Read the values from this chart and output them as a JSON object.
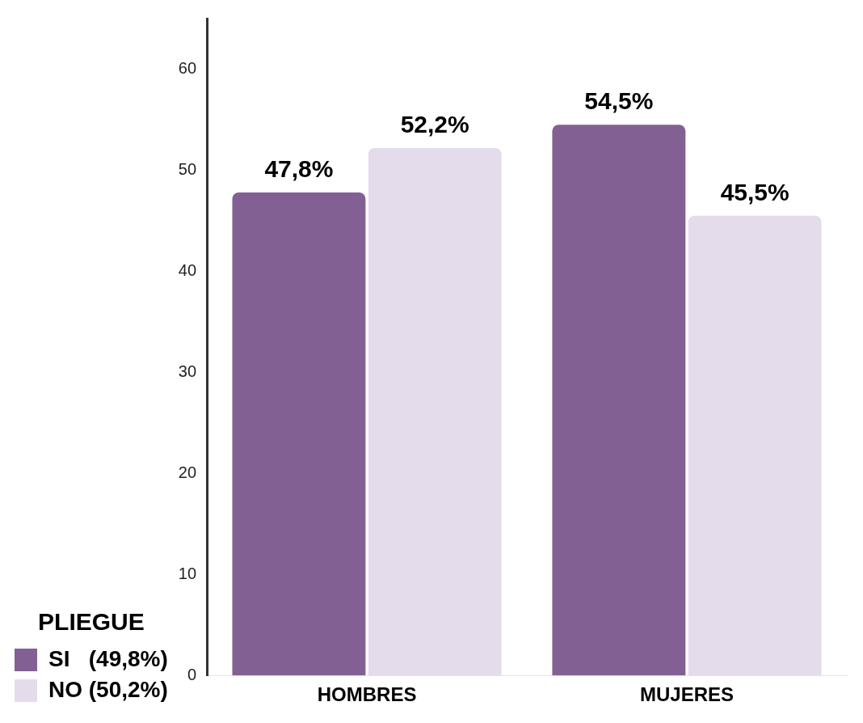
{
  "chart_data": {
    "type": "bar",
    "categories": [
      "HOMBRES",
      "MUJERES"
    ],
    "series": [
      {
        "name": "SI   (49,8%)",
        "color": "#836094",
        "values": [
          47.8,
          54.5
        ],
        "value_labels": [
          "47,8%",
          "54,5%"
        ]
      },
      {
        "name": "NO (50,2%)",
        "color": "#e4dcea",
        "values": [
          52.2,
          45.5
        ],
        "value_labels": [
          "52,2%",
          "45,5%"
        ]
      }
    ],
    "legend_title": "PLIEGUE",
    "legend": "bottom left",
    "ylim": [
      0,
      65
    ],
    "yticks": [
      0,
      10,
      20,
      30,
      40,
      50,
      60
    ],
    "grid": false
  }
}
